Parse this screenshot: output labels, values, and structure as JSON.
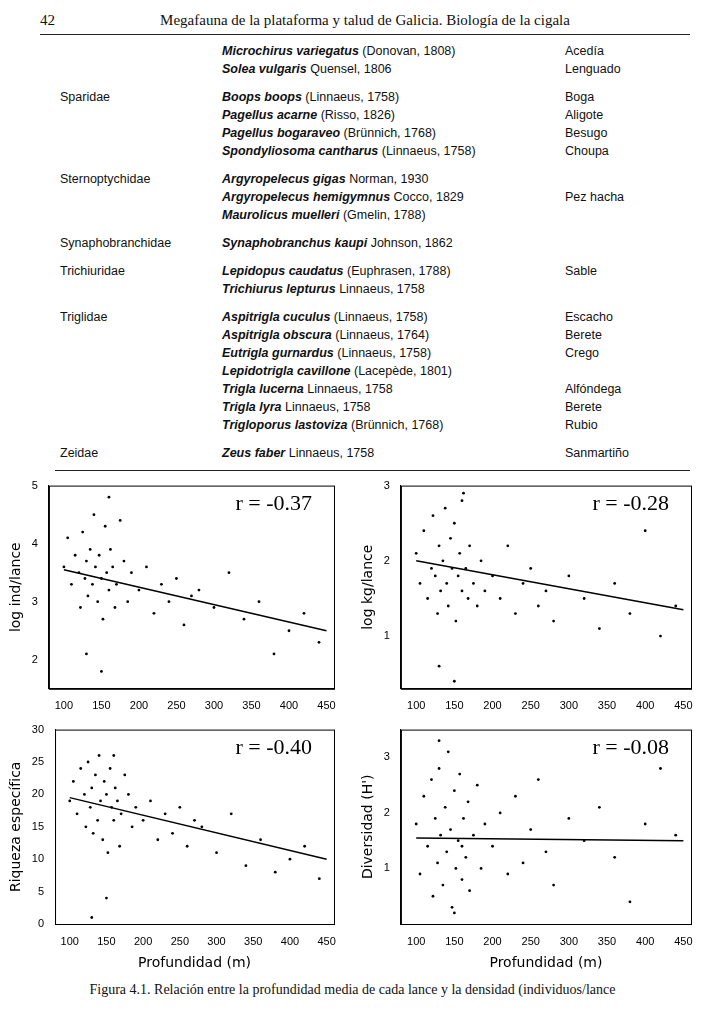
{
  "header": {
    "page": "42",
    "title": "Megafauna de la plataforma y talud de Galicia. Biología de la cigala"
  },
  "table": {
    "groups": [
      {
        "family": null,
        "species": [
          {
            "name": "Microchirus variegatus",
            "authority": "(Donovan, 1808)",
            "common": "Acedía"
          },
          {
            "name": "Solea vulgaris",
            "authority": "Quensel, 1806",
            "common": "Lenguado"
          }
        ]
      },
      {
        "family": "Sparidae",
        "species": [
          {
            "name": "Boops boops",
            "authority": "(Linnaeus, 1758)",
            "common": "Boga"
          },
          {
            "name": "Pagellus acarne",
            "authority": "(Risso, 1826)",
            "common": "Aligote"
          },
          {
            "name": "Pagellus bogaraveo",
            "authority": "(Brünnich, 1768)",
            "common": "Besugo"
          },
          {
            "name": "Spondyliosoma cantharus",
            "authority": "(Linnaeus, 1758)",
            "common": "Choupa"
          }
        ]
      },
      {
        "family": "Sternoptychidae",
        "species": [
          {
            "name": "Argyropelecus gigas",
            "authority": "Norman, 1930"
          },
          {
            "name": "Argyropelecus hemigymnus",
            "authority": "Cocco, 1829",
            "common": "Pez hacha"
          },
          {
            "name": "Maurolicus muelleri",
            "authority": "(Gmelin, 1788)"
          }
        ]
      },
      {
        "family": "Synaphobranchidae",
        "species": [
          {
            "name": "Synaphobranchus kaupi",
            "authority": "Johnson, 1862"
          }
        ]
      },
      {
        "family": "Trichiuridae",
        "species": [
          {
            "name": "Lepidopus caudatus",
            "authority": "(Euphrasen, 1788)",
            "common": "Sable"
          },
          {
            "name": "Trichiurus lepturus",
            "authority": "Linnaeus, 1758"
          }
        ]
      },
      {
        "family": "Triglidae",
        "species": [
          {
            "name": "Aspitrigla cuculus",
            "authority": "(Linnaeus, 1758)",
            "common": "Escacho"
          },
          {
            "name": "Aspitrigla obscura",
            "authority": "(Linnaeus, 1764)",
            "common": "Berete"
          },
          {
            "name": "Eutrigla gurnardus",
            "authority": "(Linnaeus, 1758)",
            "common": "Crego"
          },
          {
            "name": "Lepidotrigla cavillone",
            "authority": "(Lacepède, 1801)"
          },
          {
            "name": "Trigla lucerna",
            "authority": "Linnaeus, 1758",
            "common": "Alfóndega"
          },
          {
            "name": "Trigla lyra",
            "authority": "Linnaeus, 1758",
            "common": "Berete"
          },
          {
            "name": "Trigloporus lastoviza",
            "authority": "(Brünnich, 1768)",
            "common": "Rubio"
          }
        ]
      },
      {
        "family": "Zeidae",
        "species": [
          {
            "name": "Zeus faber",
            "authority": "Linnaeus, 1758",
            "common": "Sanmartiño"
          }
        ]
      }
    ]
  },
  "chart_data": [
    {
      "type": "scatter",
      "ylabel": "log ind/lance",
      "annotations": [
        "r = -0.37"
      ],
      "grid": false,
      "xlim": [
        80,
        460
      ],
      "xticks": [
        100,
        150,
        200,
        250,
        300,
        350,
        400,
        450
      ],
      "ylim": [
        1.5,
        5
      ],
      "yticks": [
        2,
        3,
        4,
        5
      ],
      "series": [
        {
          "type": "scatter",
          "color": "#000000",
          "x": [
            100,
            105,
            110,
            115,
            120,
            122,
            125,
            128,
            130,
            132,
            135,
            138,
            140,
            142,
            145,
            147,
            150,
            152,
            155,
            157,
            160,
            162,
            165,
            168,
            170,
            175,
            180,
            185,
            190,
            200,
            210,
            220,
            230,
            240,
            250,
            260,
            270,
            280,
            300,
            320,
            340,
            360,
            380,
            400,
            420,
            440,
            150,
            130,
            160
          ],
          "values": [
            3.6,
            4.1,
            3.3,
            3.8,
            3.5,
            2.9,
            4.2,
            3.4,
            3.7,
            3.1,
            3.9,
            3.3,
            4.5,
            3.6,
            3.0,
            3.8,
            3.4,
            2.7,
            4.3,
            3.5,
            3.2,
            3.9,
            3.6,
            2.9,
            3.3,
            4.4,
            3.7,
            3.0,
            3.5,
            3.2,
            3.6,
            2.8,
            3.3,
            3.0,
            3.4,
            2.6,
            3.1,
            3.2,
            2.9,
            3.5,
            2.7,
            3.0,
            2.1,
            2.5,
            2.8,
            2.3,
            1.8,
            2.1,
            4.8
          ]
        },
        {
          "type": "line",
          "color": "#000000",
          "x": [
            100,
            450
          ],
          "values": [
            3.55,
            2.5
          ]
        }
      ]
    },
    {
      "type": "scatter",
      "ylabel": "log kg/lance",
      "annotations": [
        "r = -0.28"
      ],
      "grid": false,
      "xlim": [
        80,
        460
      ],
      "xticks": [
        100,
        150,
        200,
        250,
        300,
        350,
        400,
        450
      ],
      "ylim": [
        0.3,
        3
      ],
      "yticks": [
        1,
        2,
        3
      ],
      "series": [
        {
          "type": "scatter",
          "color": "#000000",
          "x": [
            100,
            105,
            110,
            115,
            120,
            122,
            125,
            128,
            130,
            132,
            135,
            138,
            140,
            142,
            145,
            147,
            150,
            152,
            155,
            157,
            160,
            162,
            165,
            168,
            170,
            175,
            180,
            185,
            190,
            200,
            210,
            220,
            230,
            240,
            250,
            260,
            270,
            280,
            300,
            320,
            340,
            360,
            380,
            400,
            420,
            440,
            150,
            130,
            160
          ],
          "values": [
            2.1,
            1.7,
            2.4,
            1.5,
            1.9,
            2.6,
            1.8,
            1.3,
            2.2,
            1.6,
            2.0,
            2.7,
            1.7,
            1.4,
            2.3,
            1.9,
            2.5,
            1.2,
            1.8,
            2.1,
            1.6,
            2.9,
            1.9,
            1.5,
            2.2,
            1.7,
            1.4,
            2.0,
            1.6,
            1.8,
            1.5,
            2.2,
            1.3,
            1.7,
            1.9,
            1.4,
            1.6,
            1.2,
            1.8,
            1.5,
            1.1,
            1.7,
            1.3,
            2.4,
            1.0,
            1.4,
            0.4,
            0.6,
            2.8
          ]
        },
        {
          "type": "line",
          "color": "#000000",
          "x": [
            100,
            450
          ],
          "values": [
            2.0,
            1.35
          ]
        }
      ]
    },
    {
      "type": "scatter",
      "ylabel": "Riqueza específica",
      "xlabel": "Profundidad (m)",
      "annotations": [
        "r = -0.40"
      ],
      "grid": false,
      "xlim": [
        80,
        460
      ],
      "xticks": [
        100,
        150,
        200,
        250,
        300,
        350,
        400,
        450
      ],
      "ylim": [
        0,
        30
      ],
      "yticks": [
        0,
        5,
        10,
        15,
        20,
        25,
        30
      ],
      "series": [
        {
          "type": "scatter",
          "color": "#000000",
          "x": [
            100,
            105,
            110,
            115,
            120,
            122,
            125,
            128,
            130,
            132,
            135,
            138,
            140,
            142,
            145,
            147,
            150,
            152,
            155,
            157,
            160,
            162,
            165,
            168,
            170,
            175,
            180,
            185,
            190,
            200,
            210,
            220,
            230,
            240,
            250,
            260,
            270,
            280,
            300,
            320,
            340,
            360,
            380,
            400,
            420,
            440,
            150,
            130,
            160
          ],
          "values": [
            19,
            22,
            17,
            24,
            20,
            15,
            25,
            18,
            21,
            14,
            23,
            16,
            26,
            19,
            13,
            22,
            20,
            11,
            24,
            18,
            16,
            21,
            19,
            12,
            17,
            23,
            20,
            15,
            18,
            16,
            19,
            13,
            17,
            14,
            18,
            12,
            16,
            15,
            11,
            17,
            9,
            13,
            8,
            10,
            12,
            7,
            4,
            1,
            26
          ]
        },
        {
          "type": "line",
          "color": "#000000",
          "x": [
            100,
            450
          ],
          "values": [
            19.5,
            10
          ]
        }
      ]
    },
    {
      "type": "scatter",
      "ylabel": "Diversidad (H')",
      "xlabel": "Profundidad (m)",
      "annotations": [
        "r = -0.08"
      ],
      "grid": false,
      "xlim": [
        80,
        460
      ],
      "xticks": [
        100,
        150,
        200,
        250,
        300,
        350,
        400,
        450
      ],
      "ylim": [
        0,
        3.5
      ],
      "yticks": [
        1,
        2,
        3
      ],
      "series": [
        {
          "type": "scatter",
          "color": "#000000",
          "x": [
            100,
            105,
            110,
            115,
            120,
            122,
            125,
            128,
            130,
            132,
            135,
            138,
            140,
            142,
            145,
            147,
            150,
            152,
            155,
            157,
            160,
            162,
            165,
            168,
            170,
            175,
            180,
            185,
            190,
            200,
            210,
            220,
            230,
            240,
            250,
            260,
            270,
            280,
            300,
            320,
            340,
            360,
            380,
            400,
            420,
            440,
            150,
            130,
            160
          ],
          "values": [
            1.8,
            0.9,
            2.3,
            1.4,
            2.6,
            0.5,
            1.9,
            1.1,
            2.8,
            1.6,
            0.7,
            2.1,
            1.3,
            3.1,
            1.7,
            0.3,
            2.4,
            1.0,
            1.5,
            2.7,
            0.8,
            1.9,
            1.2,
            2.2,
            0.6,
            1.6,
            2.5,
            1.0,
            1.8,
            1.4,
            2.0,
            0.9,
            2.3,
            1.1,
            1.7,
            2.6,
            1.3,
            0.7,
            1.9,
            1.5,
            2.1,
            1.2,
            0.4,
            1.8,
            2.8,
            1.6,
            0.2,
            3.3,
            1.4
          ]
        },
        {
          "type": "line",
          "color": "#000000",
          "x": [
            100,
            450
          ],
          "values": [
            1.55,
            1.5
          ]
        }
      ]
    }
  ],
  "caption": "Figura 4.1. Relación entre la profundidad media de cada lance y la densidad (individuos/lance"
}
